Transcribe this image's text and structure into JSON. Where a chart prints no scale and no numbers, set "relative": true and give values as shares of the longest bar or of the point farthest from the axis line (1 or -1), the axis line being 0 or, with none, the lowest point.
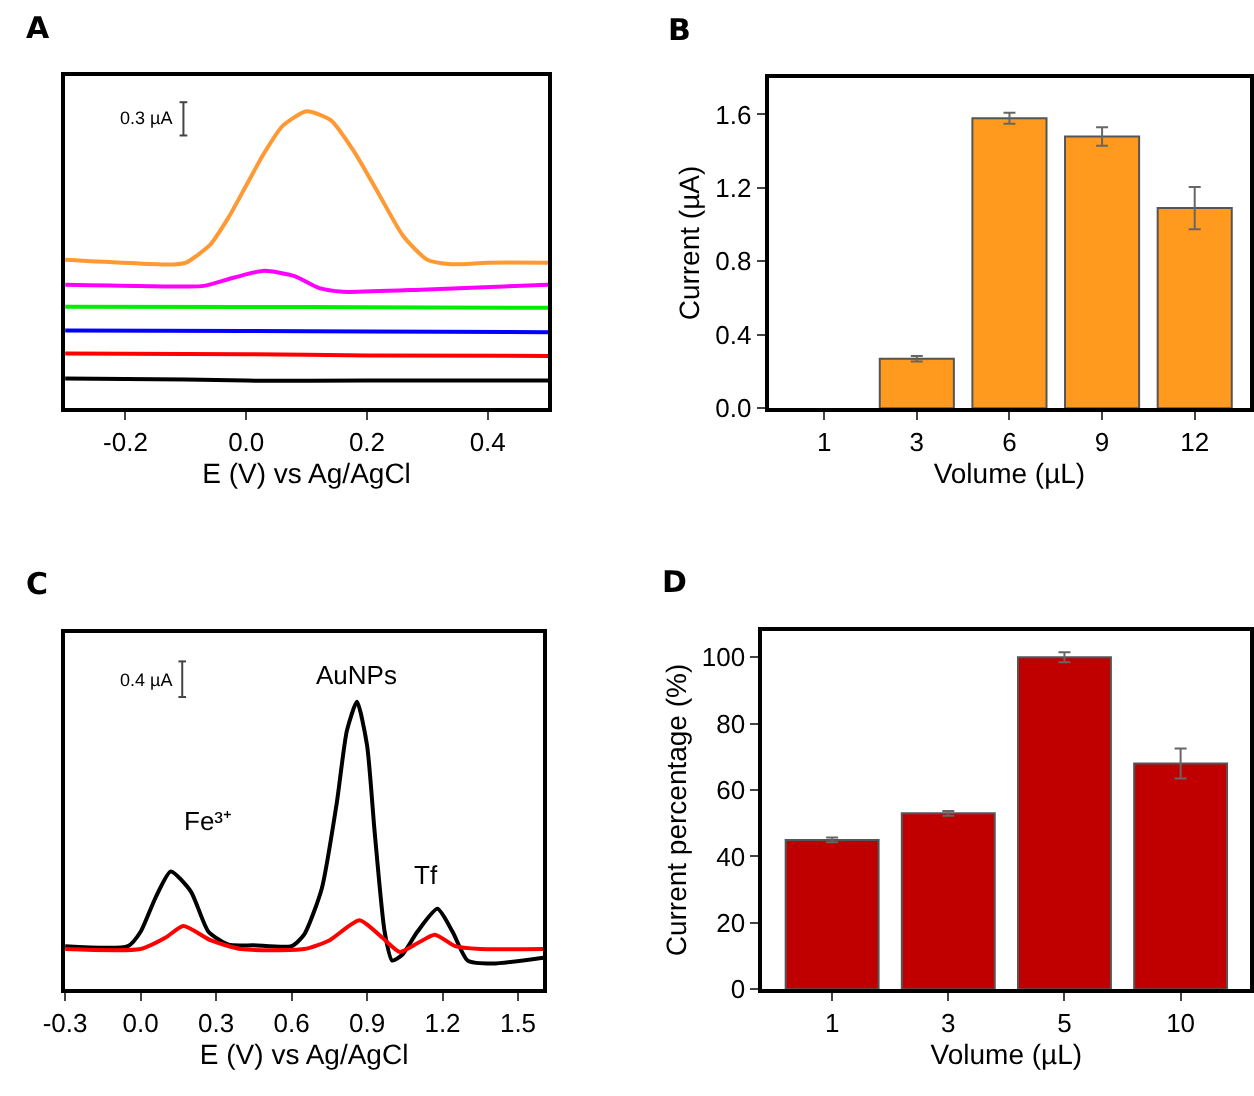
{
  "chart_data": [
    {
      "type": "line",
      "title": "A",
      "xlabel": "E (V) vs Ag/AgCl",
      "relative": true,
      "tick_labels": "x",
      "xlim": [
        -0.3,
        0.5
      ],
      "xticks": [
        -0.2,
        {
          "value": 0,
          "label": "0.0"
        },
        0.2,
        0.4
      ],
      "annotations": [
        "0.3 µA"
      ],
      "series": [
        {
          "color": "#000000",
          "x": [
            -0.3,
            -0.1,
            0.0,
            0.2,
            0.5
          ],
          "values": [
            0.1,
            0.097,
            0.093,
            0.093,
            0.093
          ]
        },
        {
          "color": "#ff0000",
          "x": [
            -0.3,
            0.0,
            0.2,
            0.5
          ],
          "values": [
            0.184,
            0.182,
            0.178,
            0.176
          ]
        },
        {
          "color": "#0000ff",
          "x": [
            -0.3,
            0.0,
            0.2,
            0.5
          ],
          "values": [
            0.262,
            0.26,
            0.258,
            0.256
          ]
        },
        {
          "color": "#00ee00",
          "x": [
            -0.3,
            0.0,
            0.2,
            0.5
          ],
          "values": [
            0.342,
            0.341,
            0.34,
            0.338
          ]
        },
        {
          "color": "#ff00ff",
          "x": [
            -0.3,
            -0.1,
            -0.07,
            -0.02,
            0.03,
            0.08,
            0.12,
            0.16,
            0.3,
            0.5
          ],
          "values": [
            0.416,
            0.41,
            0.412,
            0.44,
            0.463,
            0.445,
            0.405,
            0.392,
            0.4,
            0.416
          ]
        },
        {
          "color": "#ff9933",
          "x": [
            -0.3,
            -0.12,
            -0.1,
            -0.06,
            -0.03,
            0.0,
            0.03,
            0.06,
            0.1,
            0.14,
            0.18,
            0.22,
            0.26,
            0.3,
            0.34,
            0.4,
            0.5
          ],
          "values": [
            0.5,
            0.484,
            0.49,
            0.55,
            0.64,
            0.75,
            0.86,
            0.95,
            1.0,
            0.97,
            0.86,
            0.72,
            0.58,
            0.5,
            0.485,
            0.49,
            0.49
          ]
        }
      ]
    },
    {
      "type": "bar",
      "title": "B",
      "xlabel": "Volume (µL)",
      "ylabel": "Current (µA)",
      "categories": [
        "1",
        "3",
        "6",
        "9",
        "12"
      ],
      "values": [
        null,
        0.27,
        1.58,
        1.48,
        1.09
      ],
      "errors": [
        null,
        0.015,
        0.03,
        0.05,
        0.115
      ],
      "color": "#ff9a1f",
      "ylim": [
        0,
        1.8
      ],
      "yticks": [
        {
          "value": 0,
          "label": "0.0"
        },
        0.4,
        0.8,
        1.2,
        1.6
      ]
    },
    {
      "type": "line",
      "title": "C",
      "xlabel": "E (V) vs Ag/AgCl",
      "relative": true,
      "tick_labels": "x",
      "xlim": [
        -0.3,
        1.6
      ],
      "xticks": [
        -0.3,
        {
          "value": 0,
          "label": "0.0"
        },
        0.3,
        0.6,
        0.9,
        1.2,
        1.5
      ],
      "annotations": [
        "0.4 µA",
        "Fe³⁺",
        "AuNPs",
        "Tf"
      ],
      "series": [
        {
          "color": "#000000",
          "x": [
            -0.3,
            -0.05,
            0.0,
            0.06,
            0.12,
            0.2,
            0.27,
            0.35,
            0.45,
            0.6,
            0.65,
            0.72,
            0.78,
            0.82,
            0.86,
            0.9,
            0.93,
            0.97,
            1.0,
            1.04,
            1.1,
            1.18,
            1.24,
            1.3,
            1.4,
            1.6
          ],
          "values": [
            0.15,
            0.15,
            0.2,
            0.32,
            0.41,
            0.34,
            0.2,
            0.155,
            0.153,
            0.15,
            0.19,
            0.35,
            0.65,
            0.9,
            1.0,
            0.85,
            0.55,
            0.2,
            0.1,
            0.12,
            0.2,
            0.28,
            0.2,
            0.1,
            0.09,
            0.11
          ]
        },
        {
          "color": "#ff0000",
          "x": [
            -0.3,
            0.0,
            0.1,
            0.17,
            0.28,
            0.4,
            0.65,
            0.75,
            0.87,
            0.96,
            1.03,
            1.1,
            1.17,
            1.25,
            1.35,
            1.6
          ],
          "values": [
            0.14,
            0.14,
            0.18,
            0.22,
            0.17,
            0.14,
            0.14,
            0.17,
            0.24,
            0.18,
            0.13,
            0.16,
            0.19,
            0.15,
            0.14,
            0.14
          ]
        }
      ]
    },
    {
      "type": "bar",
      "title": "D",
      "xlabel": "Volume (µL)",
      "ylabel": "Current percentage (%)",
      "categories": [
        "1",
        "3",
        "5",
        "10"
      ],
      "values": [
        45,
        53,
        100,
        68
      ],
      "errors": [
        0.7,
        0.7,
        1.5,
        4.5
      ],
      "color": "#c00000",
      "ylim": [
        0,
        108
      ],
      "yticks": [
        0,
        20,
        40,
        60,
        80,
        100
      ]
    }
  ]
}
